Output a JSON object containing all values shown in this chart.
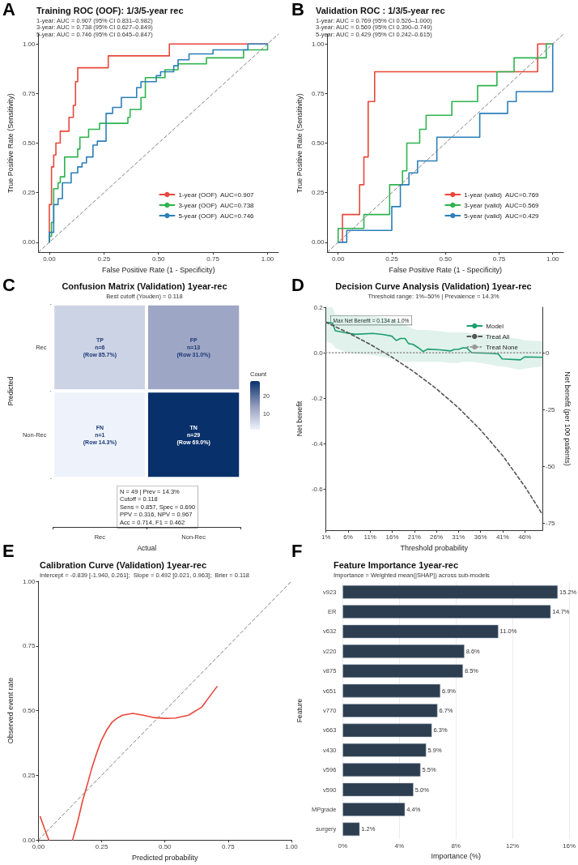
{
  "chart_data": [
    {
      "type": "line",
      "title": "Training ROC (OOF): 1/3/5-year rec",
      "subtitle": "1-year: AUC = 0.907 (95% CI 0.831–0.982)\n3-year: AUC = 0.738 (95% CI 0.627–0.849)\n5-year: AUC = 0.746 (95% CI 0.645–0.847)",
      "xlabel": "False Positive Rate (1 - Specificity)",
      "ylabel": "True Positive Rate (Sensitivity)",
      "annotations": [
        "A"
      ],
      "xlim": [
        -0.05,
        1.05
      ],
      "ylim": [
        -0.05,
        1.05
      ],
      "xticks": [
        {
          "value": 0,
          "label": "0.00"
        },
        {
          "value": 0.25,
          "label": "0.25"
        },
        {
          "value": 0.5,
          "label": "0.50"
        },
        {
          "value": 0.75,
          "label": "0.75"
        },
        {
          "value": 1,
          "label": "1.00"
        }
      ],
      "yticks": [
        {
          "value": 0,
          "label": "0.00"
        },
        {
          "value": 0.25,
          "label": "0.25"
        },
        {
          "value": 0.5,
          "label": "0.50"
        },
        {
          "value": 0.75,
          "label": "0.75"
        },
        {
          "value": 1,
          "label": "1.00"
        }
      ],
      "legend": "bottom right",
      "marker": "none",
      "series": [
        {
          "name": "1-year (OOF)  AUC=0.907",
          "color": "#e8473b",
          "x": [
            0,
            0,
            0.01,
            0.01,
            0.02,
            0.02,
            0.03,
            0.03,
            0.05,
            0.05,
            0.09,
            0.09,
            0.11,
            0.11,
            0.12,
            0.12,
            0.13,
            0.13,
            0.27,
            0.27,
            0.55,
            0.55,
            1
          ],
          "values": [
            0,
            0.19,
            0.19,
            0.38,
            0.38,
            0.44,
            0.44,
            0.5,
            0.5,
            0.56,
            0.56,
            0.63,
            0.63,
            0.69,
            0.69,
            0.81,
            0.81,
            0.88,
            0.88,
            0.94,
            0.94,
            1,
            1
          ]
        },
        {
          "name": "3-year (OOF)  AUC=0.738",
          "color": "#2db34f",
          "x": [
            0,
            0,
            0.01,
            0.01,
            0.02,
            0.02,
            0.04,
            0.04,
            0.05,
            0.05,
            0.07,
            0.07,
            0.13,
            0.13,
            0.14,
            0.14,
            0.18,
            0.18,
            0.23,
            0.23,
            0.36,
            0.36,
            0.37,
            0.37,
            0.42,
            0.42,
            0.44,
            0.44,
            0.53,
            0.53,
            0.59,
            0.59,
            0.72,
            0.72,
            0.89,
            0.89,
            1,
            1
          ],
          "values": [
            0,
            0.03,
            0.03,
            0.1,
            0.1,
            0.27,
            0.27,
            0.3,
            0.3,
            0.33,
            0.33,
            0.43,
            0.43,
            0.47,
            0.47,
            0.53,
            0.53,
            0.57,
            0.57,
            0.6,
            0.6,
            0.63,
            0.63,
            0.67,
            0.67,
            0.73,
            0.73,
            0.83,
            0.83,
            0.87,
            0.87,
            0.9,
            0.9,
            0.93,
            0.93,
            0.97,
            0.97,
            1
          ]
        },
        {
          "name": "5-year (OOF)  AUC=0.746",
          "color": "#2a7fba",
          "x": [
            0,
            0,
            0.02,
            0.02,
            0.04,
            0.04,
            0.06,
            0.06,
            0.1,
            0.1,
            0.13,
            0.13,
            0.15,
            0.15,
            0.17,
            0.17,
            0.2,
            0.2,
            0.22,
            0.22,
            0.26,
            0.26,
            0.29,
            0.29,
            0.33,
            0.33,
            0.4,
            0.4,
            0.42,
            0.42,
            0.49,
            0.49,
            0.51,
            0.51,
            0.57,
            0.57,
            0.59,
            0.59,
            0.64,
            0.64,
            0.75,
            0.75,
            0.91,
            0.91,
            1
          ],
          "values": [
            0,
            0.05,
            0.05,
            0.19,
            0.19,
            0.22,
            0.22,
            0.3,
            0.3,
            0.35,
            0.35,
            0.38,
            0.38,
            0.4,
            0.4,
            0.43,
            0.43,
            0.49,
            0.49,
            0.51,
            0.51,
            0.65,
            0.65,
            0.68,
            0.68,
            0.73,
            0.73,
            0.78,
            0.78,
            0.81,
            0.81,
            0.84,
            0.84,
            0.86,
            0.86,
            0.89,
            0.89,
            0.92,
            0.92,
            0.95,
            0.95,
            0.97,
            0.97,
            1,
            1
          ]
        },
        {
          "color": "#808080",
          "line_style": "dashed",
          "x": [
            -0.05,
            1.05
          ],
          "values": [
            -0.05,
            1.05
          ]
        }
      ]
    },
    {
      "type": "line",
      "title": "Validation ROC : 1/3/5-year rec",
      "subtitle": "1-year: AUC = 0.769 (95% CI 0.526–1.000)\n3-year: AUC = 0.569 (95% CI 0.390–0.749)\n5-year: AUC = 0.429 (95% CI 0.242–0.615)",
      "xlabel": "False Positive Rate (1 - Specificity)",
      "ylabel": "True Positive Rate (Sensitivity)",
      "annotations": [
        "B"
      ],
      "xlim": [
        -0.05,
        1.05
      ],
      "ylim": [
        -0.05,
        1.05
      ],
      "xticks": [
        {
          "value": 0,
          "label": "0.00"
        },
        {
          "value": 0.25,
          "label": "0.25"
        },
        {
          "value": 0.5,
          "label": "0.50"
        },
        {
          "value": 0.75,
          "label": "0.75"
        },
        {
          "value": 1,
          "label": "1.00"
        }
      ],
      "yticks": [
        {
          "value": 0,
          "label": "0.00"
        },
        {
          "value": 0.25,
          "label": "0.25"
        },
        {
          "value": 0.5,
          "label": "0.50"
        },
        {
          "value": 0.75,
          "label": "0.75"
        },
        {
          "value": 1,
          "label": "1.00"
        }
      ],
      "legend": "bottom right",
      "marker": "none",
      "series": [
        {
          "name": "1-year (valid)  AUC=0.769",
          "color": "#e8473b",
          "x": [
            0.02,
            0.02,
            0.1,
            0.1,
            0.12,
            0.12,
            0.14,
            0.14,
            0.17,
            0.17,
            0.93,
            0.93,
            1
          ],
          "values": [
            0,
            0.14,
            0.14,
            0.29,
            0.29,
            0.43,
            0.43,
            0.71,
            0.71,
            0.86,
            0.86,
            1,
            1
          ]
        },
        {
          "name": "3-year (valid)  AUC=0.569",
          "color": "#2db34f",
          "x": [
            0,
            0,
            0.12,
            0.12,
            0.24,
            0.24,
            0.3,
            0.3,
            0.32,
            0.32,
            0.38,
            0.38,
            0.41,
            0.41,
            0.53,
            0.53,
            0.65,
            0.65,
            0.74,
            0.74,
            0.82,
            0.82,
            0.97,
            0.97,
            1
          ],
          "values": [
            0,
            0.07,
            0.07,
            0.14,
            0.14,
            0.29,
            0.29,
            0.36,
            0.36,
            0.5,
            0.5,
            0.57,
            0.57,
            0.64,
            0.64,
            0.71,
            0.71,
            0.79,
            0.79,
            0.86,
            0.86,
            0.93,
            0.93,
            1,
            1
          ]
        },
        {
          "name": "5-year (valid)  AUC=0.429",
          "color": "#2a7fba",
          "x": [
            0,
            0.04,
            0.04,
            0.25,
            0.25,
            0.29,
            0.29,
            0.33,
            0.33,
            0.37,
            0.37,
            0.46,
            0.46,
            0.66,
            0.66,
            0.79,
            0.79,
            0.83,
            0.83,
            1,
            1
          ],
          "values": [
            0,
            0,
            0.06,
            0.06,
            0.18,
            0.18,
            0.29,
            0.29,
            0.35,
            0.35,
            0.41,
            0.41,
            0.53,
            0.53,
            0.65,
            0.65,
            0.71,
            0.71,
            0.76,
            0.76,
            1
          ]
        },
        {
          "color": "#808080",
          "line_style": "dashed",
          "x": [
            -0.05,
            1.05
          ],
          "values": [
            -0.05,
            1.05
          ]
        }
      ]
    },
    {
      "type": "heatmap",
      "title": "Confusion Matrix (Validation) 1year-rec",
      "subtitle": "Best cutoff (Youden) = 0.118",
      "xlabel": "Actual",
      "ylabel": "Predicted",
      "clabel": "Count",
      "categories": [
        "Rec",
        "Non-Rec"
      ],
      "y_categories": [
        "Rec",
        "Non-Rec"
      ],
      "cells": [
        [
          6,
          13
        ],
        [
          1,
          29
        ]
      ],
      "cell_labels": [
        [
          "TP\nn=6\n(Row 85.7%)",
          "FP\nn=13\n(Row 31.0%)"
        ],
        [
          "FN\nn=1\n(Row 14.3%)",
          "TN\nn=29\n(Row 69.0%)"
        ]
      ],
      "clim": [
        1,
        29
      ],
      "cticks": [
        10,
        20
      ],
      "annotations": [
        "C",
        "N = 49 | Prev = 14.3%\nCutoff = 0.118\nSens = 0.857, Spec = 0.690\nPPV = 0.316, NPV = 0.967\nAcc = 0.714, F1 = 0.462"
      ]
    },
    {
      "type": "line",
      "title": "Decision Curve Analysis (Validation) 1year-rec",
      "subtitle": "Threshold range: 1%–50% | Prevalence = 14.3%",
      "xlabel": "Threshold probability",
      "ylabel": "Net benefit",
      "y2label": "Net benefit (per 100 patients)",
      "annotations": [
        "D",
        "Max Net Benefit = 0.134 at 1.0%"
      ],
      "xlim": [
        1,
        50
      ],
      "xticks": [
        {
          "value": 1,
          "label": "1%"
        },
        {
          "value": 6,
          "label": "6%"
        },
        {
          "value": 11,
          "label": "11%"
        },
        {
          "value": 16,
          "label": "16%"
        },
        {
          "value": 21,
          "label": "21%"
        },
        {
          "value": 26,
          "label": "26%"
        },
        {
          "value": 31,
          "label": "31%"
        },
        {
          "value": 36,
          "label": "36%"
        },
        {
          "value": 41,
          "label": "41%"
        },
        {
          "value": 46,
          "label": "46%"
        }
      ],
      "ylim": [
        -0.78,
        0.2
      ],
      "yticks": [
        0.2,
        {
          "value": 0,
          "label": "0.0"
        },
        -0.2,
        -0.4,
        -0.6
      ],
      "y2lim": [
        -78,
        20
      ],
      "y2ticks": [
        0,
        -25,
        -50,
        -75
      ],
      "legend": "top right",
      "marker": "none",
      "series": [
        {
          "name": "Model",
          "color": "#1a9e6e",
          "x": [
            1,
            2.5,
            3.1,
            5.9,
            7.7,
            11.6,
            14.1,
            15.9,
            16.9,
            17.9,
            18.9,
            19.7,
            20.7,
            21.9,
            23,
            24,
            26.8,
            29.2,
            30,
            31,
            32,
            32.9,
            34,
            37.7,
            40,
            40.9,
            45,
            46,
            50
          ],
          "values": [
            0.134,
            0.13,
            0.097,
            0.086,
            0.081,
            0.085,
            0.08,
            0.073,
            0.054,
            0.063,
            0.063,
            0.04,
            0.037,
            0.022,
            0.005,
            0.016,
            0.013,
            0.008,
            0.015,
            0.015,
            0.022,
            0.021,
            0,
            -0.002,
            -0.005,
            -0.027,
            -0.031,
            -0.018,
            -0.02
          ],
          "upper": [
            0.2,
            0.2,
            0.17,
            0.165,
            0.165,
            0.16,
            0.155,
            0.15,
            0.145,
            0.135,
            0.125,
            0.115,
            0.105,
            0.1,
            0.1,
            0.1,
            0.095,
            0.09,
            0.09,
            0.09,
            0.09,
            0.09,
            0.085,
            0.08,
            0.07,
            0.07,
            0.06,
            0.055,
            0.05
          ],
          "lower": [
            0.05,
            0.04,
            0.02,
            0,
            -0.005,
            -0.01,
            -0.02,
            -0.025,
            -0.03,
            -0.035,
            -0.04,
            -0.04,
            -0.04,
            -0.04,
            -0.04,
            -0.04,
            -0.04,
            -0.045,
            -0.045,
            -0.045,
            -0.04,
            -0.04,
            -0.04,
            -0.05,
            -0.06,
            -0.06,
            -0.075,
            -0.07,
            -0.06
          ]
        },
        {
          "name": "Treat All",
          "color": "#555555",
          "line_style": "dashed",
          "x": [
            1,
            6,
            11,
            16,
            21,
            26,
            31,
            36,
            41,
            46,
            50
          ],
          "values": [
            0.134,
            0.088,
            0.037,
            -0.02,
            -0.085,
            -0.158,
            -0.242,
            -0.339,
            -0.452,
            -0.587,
            -0.71
          ]
        },
        {
          "name": "Treat None",
          "color": "#999999",
          "line_style": "dotted",
          "x": [
            1,
            50
          ],
          "values": [
            0,
            0
          ]
        }
      ]
    },
    {
      "type": "line",
      "title": "Calibration Curve (Validation) 1year-rec",
      "subtitle": "Intercept = -0.839 [-1.940, 0.261];  Slope = 0.492 [0.021, 0.963];  Brier = 0.118",
      "xlabel": "Predicted probability",
      "ylabel": "Observed event rate",
      "annotations": [
        "E"
      ],
      "xlim": [
        0,
        1
      ],
      "ylim": [
        0,
        1
      ],
      "xticks": [
        {
          "value": 0,
          "label": "0.00"
        },
        {
          "value": 0.25,
          "label": "0.25"
        },
        {
          "value": 0.5,
          "label": "0.50"
        },
        {
          "value": 0.75,
          "label": "0.75"
        },
        {
          "value": 1,
          "label": "1.00"
        }
      ],
      "yticks": [
        {
          "value": 0,
          "label": "0.00"
        },
        {
          "value": 0.25,
          "label": "0.25"
        },
        {
          "value": 0.5,
          "label": "0.50"
        },
        {
          "value": 0.75,
          "label": "0.75"
        },
        {
          "value": 1,
          "label": "1.00"
        }
      ],
      "marker": "none",
      "series": [
        {
          "color": "#808080",
          "line_style": "dashed",
          "x": [
            0,
            1
          ],
          "values": [
            0,
            1
          ]
        },
        {
          "color": "#e8473b",
          "x": [
            0.007,
            0.02,
            0.03,
            0.041,
            null,
            0.135,
            0.155,
            0.175,
            0.195,
            0.211,
            0.23,
            0.248,
            0.27,
            0.29,
            0.31,
            0.332,
            0.373,
            0.415,
            0.457,
            0.499,
            0.541,
            0.593,
            0.645,
            0.706
          ],
          "values": [
            0.09,
            0.055,
            0.028,
            0,
            null,
            0,
            0.07,
            0.153,
            0.22,
            0.278,
            0.335,
            0.383,
            0.425,
            0.454,
            0.47,
            0.482,
            0.489,
            0.482,
            0.473,
            0.47,
            0.471,
            0.482,
            0.513,
            0.593
          ]
        }
      ]
    },
    {
      "type": "bar",
      "orientation": "horizontal",
      "title": "Feature Importance 1year-rec",
      "subtitle": "Importance = Weighted mean(|SHAP|) across sub-models",
      "xlabel": "Importance (%)",
      "ylabel": "Feature",
      "annotations": [
        "F"
      ],
      "categories": [
        "v923",
        "ER",
        "v632",
        "v220",
        "v875",
        "v651",
        "v770",
        "v663",
        "v430",
        "v596",
        "v590",
        "MPgrade",
        "surgery"
      ],
      "values": [
        15.2,
        14.7,
        11.0,
        8.6,
        8.5,
        6.9,
        6.7,
        6.3,
        5.9,
        5.5,
        5.0,
        4.4,
        1.2
      ],
      "value_labels": [
        "15.2%",
        "14.7%",
        "11.0%",
        "8.6%",
        "8.5%",
        "6.9%",
        "6.7%",
        "6.3%",
        "5.9%",
        "5.5%",
        "5.0%",
        "4.4%",
        "1.2%"
      ],
      "color": "#2c3e50",
      "xlim": [
        0,
        16
      ],
      "xticks": [
        {
          "value": 0,
          "label": "0%"
        },
        {
          "value": 4,
          "label": "4%"
        },
        {
          "value": 8,
          "label": "8%"
        },
        {
          "value": 12,
          "label": "12%"
        },
        {
          "value": 16,
          "label": "16%"
        }
      ],
      "grid": "x"
    }
  ]
}
